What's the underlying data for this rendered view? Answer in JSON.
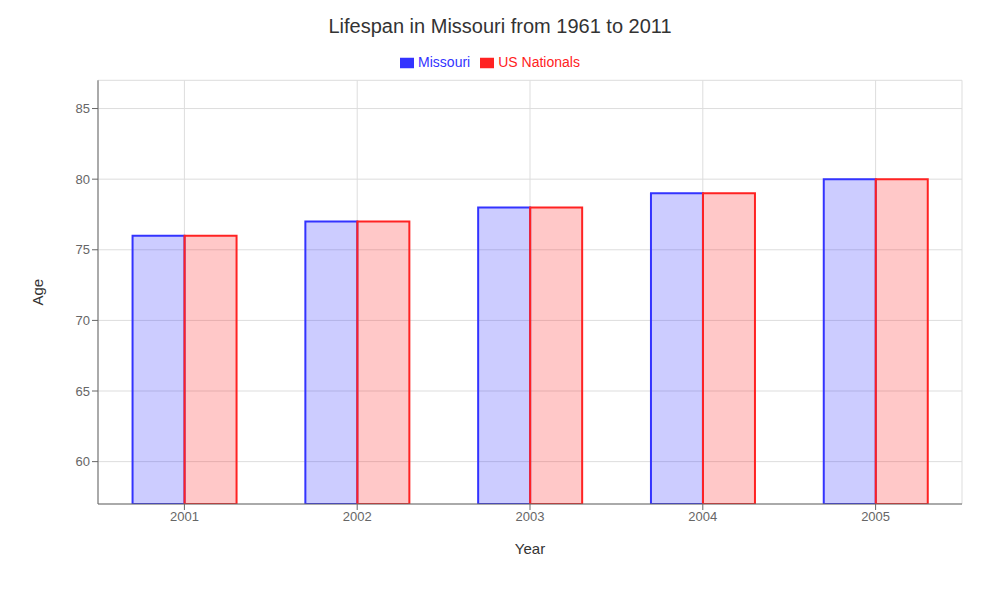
{
  "chart_data": {
    "type": "bar",
    "title": "Lifespan in Missouri from 1961 to 2011",
    "x_label": "Year",
    "y_label": "Age",
    "categories": [
      "2001",
      "2002",
      "2003",
      "2004",
      "2005"
    ],
    "series": [
      {
        "name": "Missouri",
        "color": "#3333ff",
        "values": [
          76,
          77,
          78,
          79,
          80
        ]
      },
      {
        "name": "US Nationals",
        "color": "#ff2222",
        "values": [
          76,
          77,
          78,
          79,
          80
        ]
      }
    ],
    "ylim": [
      57,
      87
    ],
    "yticks": [
      60,
      65,
      70,
      75,
      80,
      85
    ],
    "grid": true,
    "legend": "top"
  }
}
